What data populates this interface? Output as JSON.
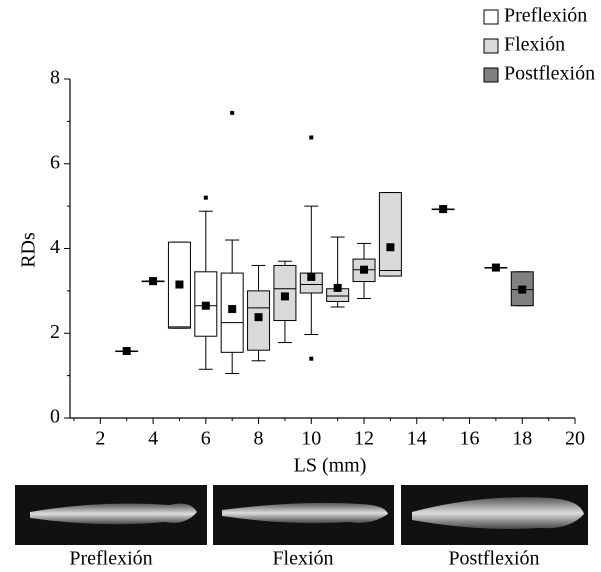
{
  "chart_data": {
    "type": "box",
    "xlabel": "LS (mm)",
    "ylabel": "RDs",
    "xlim": [
      0.85,
      20
    ],
    "xticks": [
      2,
      4,
      6,
      8,
      10,
      12,
      14,
      16,
      18,
      20
    ],
    "xminor_ticks": [
      1,
      3,
      5,
      7,
      9,
      11,
      13,
      15,
      17,
      19
    ],
    "ylim": [
      0,
      8
    ],
    "yticks": [
      0,
      2,
      4,
      6,
      8
    ],
    "yminor_ticks": [
      1,
      3,
      5,
      7
    ],
    "legend": "top-right",
    "series": [
      {
        "name": "Preflexión",
        "color": "#ffffff",
        "x": [
          3,
          4,
          5,
          6,
          7
        ],
        "min": [
          1.58,
          3.23,
          2.12,
          1.15,
          1.05
        ],
        "q1": [
          1.58,
          3.23,
          2.12,
          1.93,
          1.55
        ],
        "median": [
          1.58,
          3.23,
          2.15,
          2.65,
          2.25
        ],
        "q3": [
          1.58,
          3.23,
          4.15,
          3.45,
          3.42
        ],
        "max": [
          1.58,
          3.23,
          4.15,
          4.88,
          4.2
        ],
        "mean": [
          1.58,
          3.23,
          3.15,
          2.65,
          2.57
        ],
        "outliers": [
          [],
          [],
          [],
          [
            5.2
          ],
          [
            7.2
          ]
        ]
      },
      {
        "name": "Flexión",
        "color": "#d9d9d9",
        "x": [
          8,
          9,
          10,
          11,
          12,
          13,
          15,
          17
        ],
        "min": [
          1.35,
          1.78,
          1.97,
          2.62,
          2.82,
          3.35,
          4.93,
          3.55
        ],
        "q1": [
          1.6,
          2.3,
          2.95,
          2.75,
          3.22,
          3.35,
          4.93,
          3.55
        ],
        "median": [
          2.6,
          3.05,
          3.15,
          2.88,
          3.5,
          3.48,
          4.93,
          3.55
        ],
        "q3": [
          3.0,
          3.6,
          3.42,
          3.05,
          3.75,
          5.32,
          4.93,
          3.55
        ],
        "max": [
          3.6,
          3.7,
          5.0,
          4.27,
          4.12,
          5.32,
          4.93,
          3.55
        ],
        "mean": [
          2.38,
          2.87,
          3.33,
          3.07,
          3.5,
          4.03,
          4.93,
          3.55
        ],
        "outliers": [
          [],
          [],
          [
            1.4,
            6.62
          ],
          [],
          [],
          [],
          [],
          []
        ]
      },
      {
        "name": "Postflexión",
        "color": "#808080",
        "x": [
          18
        ],
        "min": [
          2.65
        ],
        "q1": [
          2.65
        ],
        "median": [
          3.03
        ],
        "q3": [
          3.45
        ],
        "max": [
          3.45
        ],
        "mean": [
          3.03
        ],
        "outliers": [
          []
        ]
      }
    ]
  },
  "panels": [
    {
      "caption": "Preflexión"
    },
    {
      "caption": "Flexión"
    },
    {
      "caption": "Postflexión"
    }
  ]
}
